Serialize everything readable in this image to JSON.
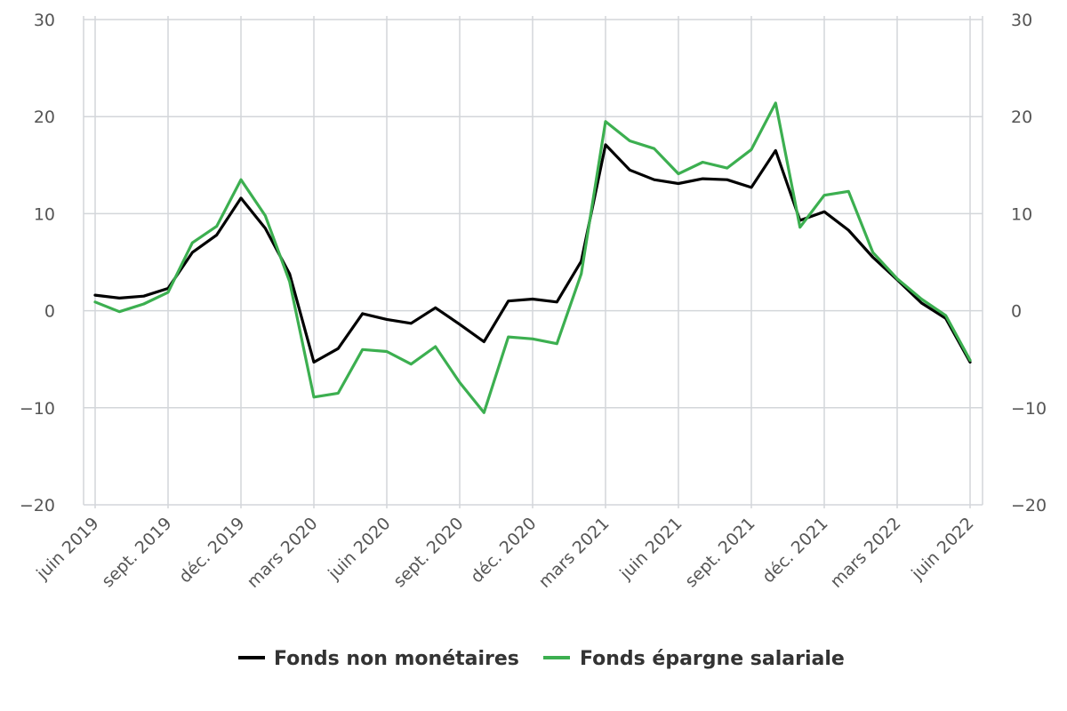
{
  "chart_data": {
    "type": "line",
    "title": "",
    "xlabel": "",
    "ylabel": "",
    "ylim": [
      -20,
      30
    ],
    "yticks": [
      30,
      20,
      10,
      0,
      -10,
      -20
    ],
    "ytick_labels": [
      "30",
      "20",
      "10",
      "0",
      "−10",
      "−20"
    ],
    "grid": true,
    "dual_axis_labels": true,
    "legend_position": "bottom",
    "x": [
      "juin 2019",
      "juil. 2019",
      "août 2019",
      "sept. 2019",
      "oct. 2019",
      "nov. 2019",
      "déc. 2019",
      "janv. 2020",
      "févr. 2020",
      "mars 2020",
      "avr. 2020",
      "mai 2020",
      "juin 2020",
      "juil. 2020",
      "août 2020",
      "sept. 2020",
      "oct. 2020",
      "nov. 2020",
      "déc. 2020",
      "janv. 2021",
      "févr. 2021",
      "mars 2021",
      "avr. 2021",
      "mai 2021",
      "juin 2021",
      "juil. 2021",
      "août 2021",
      "sept. 2021",
      "oct. 2021",
      "nov. 2021",
      "déc. 2021",
      "janv. 2022",
      "févr. 2022",
      "mars 2022",
      "avr. 2022",
      "mai 2022",
      "juin 2022"
    ],
    "x_tick_labels": [
      "juin 2019",
      "sept. 2019",
      "déc. 2019",
      "mars 2020",
      "juin 2020",
      "sept. 2020",
      "déc. 2020",
      "mars 2021",
      "juin 2021",
      "sept. 2021",
      "déc. 2021",
      "mars 2022",
      "juin 2022"
    ],
    "series": [
      {
        "name": "Fonds non monétaires",
        "color": "#000000",
        "values": [
          1.6,
          1.3,
          1.5,
          2.3,
          6.0,
          7.8,
          11.6,
          8.5,
          3.8,
          -5.3,
          -3.9,
          -0.3,
          -0.9,
          -1.3,
          0.3,
          -1.4,
          -3.2,
          1.0,
          1.2,
          0.9,
          5.1,
          17.1,
          14.5,
          13.5,
          13.1,
          13.6,
          13.5,
          12.7,
          16.5,
          9.3,
          10.2,
          8.3,
          5.5,
          3.2,
          0.8,
          -0.8,
          -5.3
        ]
      },
      {
        "name": "Fonds épargne salariale",
        "color": "#3caf50",
        "values": [
          0.9,
          -0.1,
          0.7,
          1.9,
          7.0,
          8.7,
          13.5,
          9.8,
          3.0,
          -8.9,
          -8.5,
          -4.0,
          -4.2,
          -5.5,
          -3.7,
          -7.4,
          -10.5,
          -2.7,
          -2.9,
          -3.4,
          3.8,
          19.5,
          17.5,
          16.7,
          14.1,
          15.3,
          14.7,
          16.6,
          21.4,
          8.6,
          11.9,
          12.3,
          6.0,
          3.3,
          1.2,
          -0.5,
          -5.1
        ]
      }
    ]
  }
}
